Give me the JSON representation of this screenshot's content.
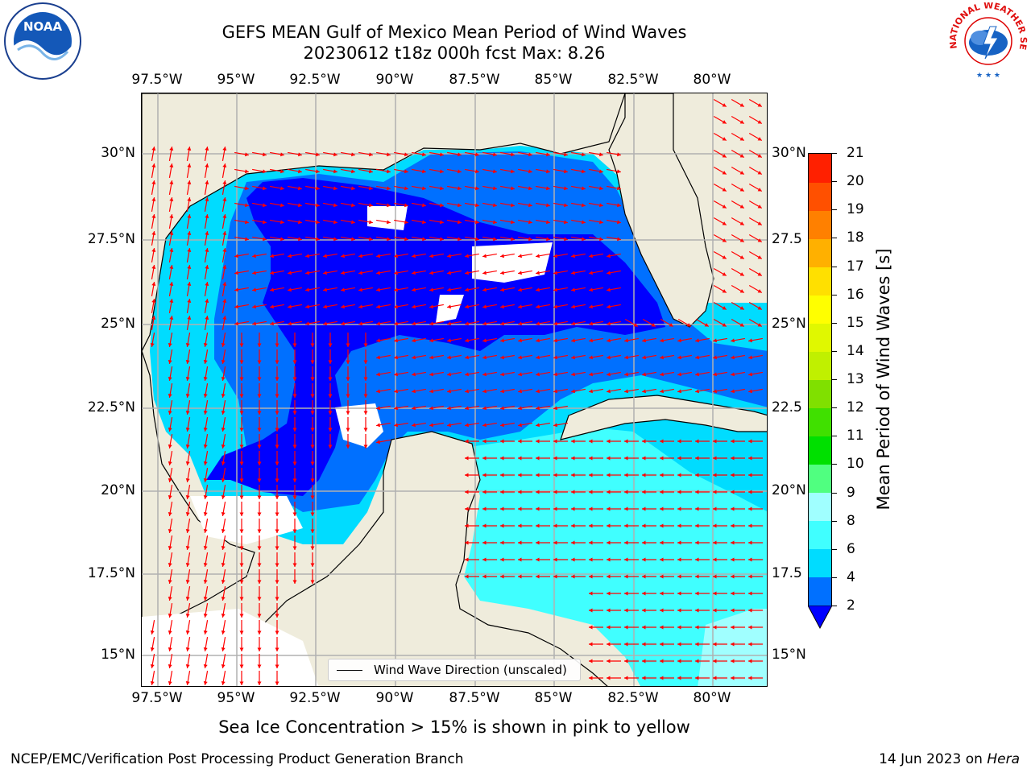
{
  "header": {
    "title_line1": "GEFS MEAN Gulf of Mexico Mean Period of Wind Waves",
    "title_line2": "20230612 t18z 000h fcst   Max: 8.26"
  },
  "logos": {
    "noaa_text": "NOAA",
    "nws_text": "NATIONAL WEATHER SERVICE"
  },
  "map": {
    "lon_labels": [
      "97.5°W",
      "95°W",
      "92.5°W",
      "90°W",
      "87.5°W",
      "85°W",
      "82.5°W",
      "80°W"
    ],
    "lat_labels_left": [
      "30°N",
      "27.5°N",
      "25°N",
      "22.5°N",
      "20°N",
      "17.5°N",
      "15°N"
    ],
    "lat_labels_right": [
      "30°N",
      "27.5",
      "25°N",
      "22.5",
      "20°N",
      "17.5",
      "15°N"
    ],
    "legend_label": "Wind Wave Direction (unscaled)",
    "land_color": "#efecdc",
    "arrow_color": "#ff0000"
  },
  "colorbar": {
    "label": "Mean Period of Wind Waves [s]",
    "ticks": [
      "2",
      "4",
      "6",
      "8",
      "9",
      "10",
      "11",
      "12",
      "13",
      "14",
      "15",
      "16",
      "17",
      "18",
      "19",
      "20",
      "21"
    ],
    "colors": [
      "#0070ff",
      "#00dcff",
      "#40ffff",
      "#a0ffff",
      "#50ff80",
      "#00e000",
      "#40e000",
      "#80e000",
      "#c0f000",
      "#e0f800",
      "#ffff00",
      "#ffe000",
      "#ffb000",
      "#ff8000",
      "#ff5000",
      "#ff2000"
    ],
    "under_color": "#0000ff"
  },
  "note": "Sea Ice Concentration > 15% is shown in pink to yellow",
  "footer": {
    "left": "NCEP/EMC/Verification Post Processing Product Generation Branch",
    "right_date": "14 Jun 2023 on",
    "right_host": "Hera"
  }
}
